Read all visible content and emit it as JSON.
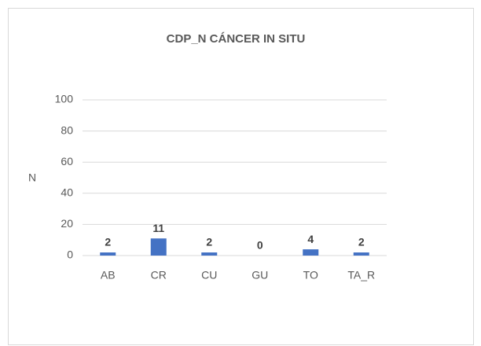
{
  "chart_data": {
    "type": "bar",
    "title": "CDP_N CÁNCER IN SITU",
    "y_label": "N",
    "categories": [
      "AB",
      "CR",
      "CU",
      "GU",
      "TO",
      "TA_R"
    ],
    "values": [
      2,
      11,
      2,
      0,
      4,
      2
    ],
    "color": "#4472c4",
    "ylim": [
      0,
      100
    ],
    "yticks": [
      0,
      20,
      40,
      60,
      80,
      100
    ],
    "grid": true
  }
}
